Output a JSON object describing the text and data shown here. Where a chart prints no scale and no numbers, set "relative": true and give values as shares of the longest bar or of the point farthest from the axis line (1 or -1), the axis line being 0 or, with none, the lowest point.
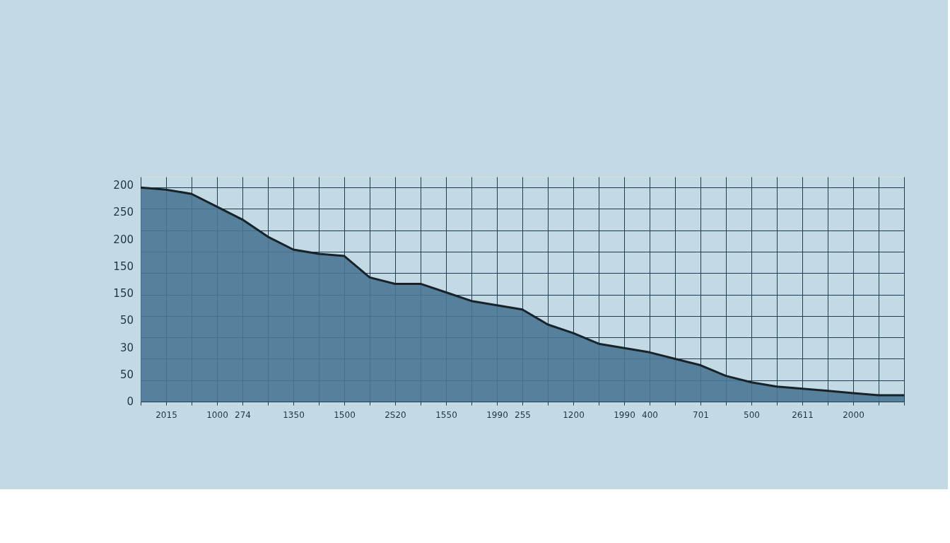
{
  "chart_data": {
    "type": "area",
    "relative": true,
    "categories": [
      null,
      "2015",
      null,
      "1000",
      "274",
      null,
      "1350",
      null,
      "1500",
      null,
      "2S20",
      null,
      "1550",
      null,
      "1990",
      "255",
      null,
      "1200",
      null,
      "1990",
      "400",
      null,
      "701",
      null,
      "500",
      null,
      "2611",
      null,
      "2000",
      null,
      null
    ],
    "series": [
      {
        "color": "#4a7592",
        "values": [
          1,
          0.99,
          0.97,
          0.91,
          0.85,
          0.77,
          0.71,
          0.69,
          0.68,
          0.58,
          0.55,
          0.55,
          0.51,
          0.47,
          0.45,
          0.43,
          0.36,
          0.32,
          0.27,
          0.25,
          0.23,
          0.2,
          0.17,
          0.12,
          0.09,
          0.07,
          0.06,
          0.05,
          0.04,
          0.03,
          0.03
        ]
      }
    ],
    "annotations": [
      "200",
      "250",
      "200",
      "150",
      "150",
      "50",
      "30",
      "50",
      "0"
    ],
    "grid": true
  }
}
